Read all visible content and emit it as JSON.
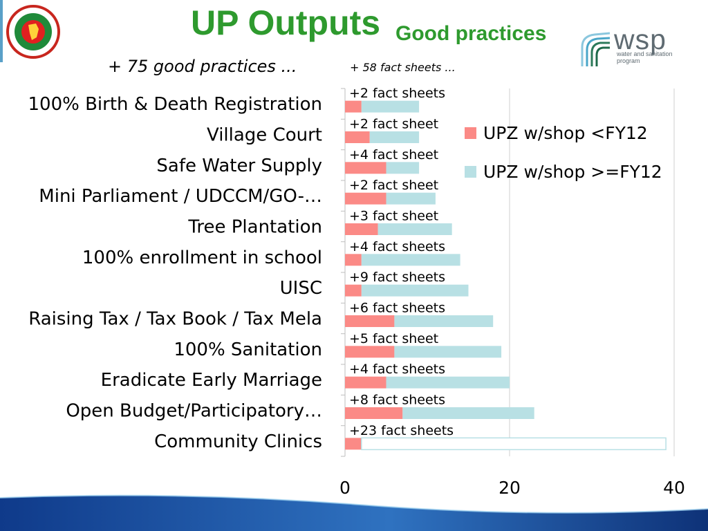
{
  "header": {
    "title": "UP Outputs",
    "subtitle": "Good practices",
    "logo_name": "wsp",
    "logo_subtext": "water and sanitation program"
  },
  "notes": {
    "left": "+ 75 good practices ...",
    "right": "+ 58 fact sheets ..."
  },
  "colors": {
    "title_green": "#2e9a2e",
    "series_before": "#fb8a86",
    "series_after": "#b8e0e4",
    "band_blue": "#1f4f9a"
  },
  "chart_data": {
    "type": "bar",
    "orientation": "horizontal",
    "stacked": true,
    "categories": [
      "100% Birth & Death Registration",
      "Village Court",
      "Safe Water Supply",
      "Mini Parliament / UDCCM/GO-…",
      "Tree Plantation",
      "100% enrollment in school",
      "UISC",
      "Raising Tax / Tax Book / Tax Mela",
      "100% Sanitation",
      "Eradicate Early Marriage",
      "Open Budget/Participatory…",
      "Community Clinics"
    ],
    "series": [
      {
        "name": "UPZ w/shop <FY12",
        "color": "#fb8a86",
        "values": [
          2,
          3,
          5,
          5,
          4,
          2,
          2,
          6,
          6,
          5,
          7,
          2
        ]
      },
      {
        "name": "UPZ w/shop >=FY12",
        "color": "#b8e0e4",
        "values": [
          7,
          6,
          4,
          6,
          9,
          12,
          13,
          12,
          13,
          15,
          16,
          37
        ]
      }
    ],
    "data_labels": [
      "+2 fact sheets",
      "+2 fact sheet",
      "+4 fact sheet",
      "+2 fact sheet",
      "+3 fact sheet",
      "+4 fact sheets",
      "+9 fact sheets",
      "+6 fact sheets",
      "+5 fact sheet",
      "+4 fact sheets",
      "+8 fact sheets",
      "+23 fact sheets"
    ],
    "xlim": [
      0,
      40
    ],
    "xticks": [
      0,
      20,
      40
    ],
    "grid": true,
    "legend_position": "right"
  }
}
